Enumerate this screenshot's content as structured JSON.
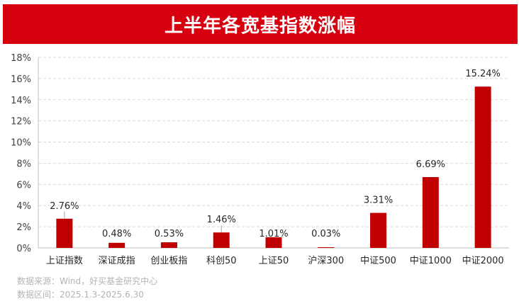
{
  "title": "上半年各宽基指数涨幅",
  "footer": {
    "source": "数据来源：Wind，好买基金研究中心",
    "period": "数据区间：2025.1.3-2025.6.30"
  },
  "colors": {
    "title_bg": "#d7000f",
    "bar": "#c00000",
    "footer_text": "#b4b4b4"
  },
  "chart_data": {
    "type": "bar",
    "categories": [
      "上证指数",
      "深证成指",
      "创业板指",
      "科创50",
      "上证50",
      "沪深300",
      "中证500",
      "中证1000",
      "中证2000"
    ],
    "values": [
      2.76,
      0.48,
      0.53,
      1.46,
      1.01,
      0.03,
      3.31,
      6.69,
      15.24
    ],
    "data_labels": [
      "2.76%",
      "0.48%",
      "0.53%",
      "1.46%",
      "1.01%",
      "0.03%",
      "3.31%",
      "6.69%",
      "15.24%"
    ],
    "ylim": [
      0,
      18
    ],
    "y_ticks": [
      "0%",
      "2%",
      "4%",
      "6%",
      "8%",
      "10%",
      "12%",
      "14%",
      "16%",
      "18%"
    ],
    "grid": true,
    "legend": "none",
    "xlabel": "",
    "ylabel": ""
  }
}
